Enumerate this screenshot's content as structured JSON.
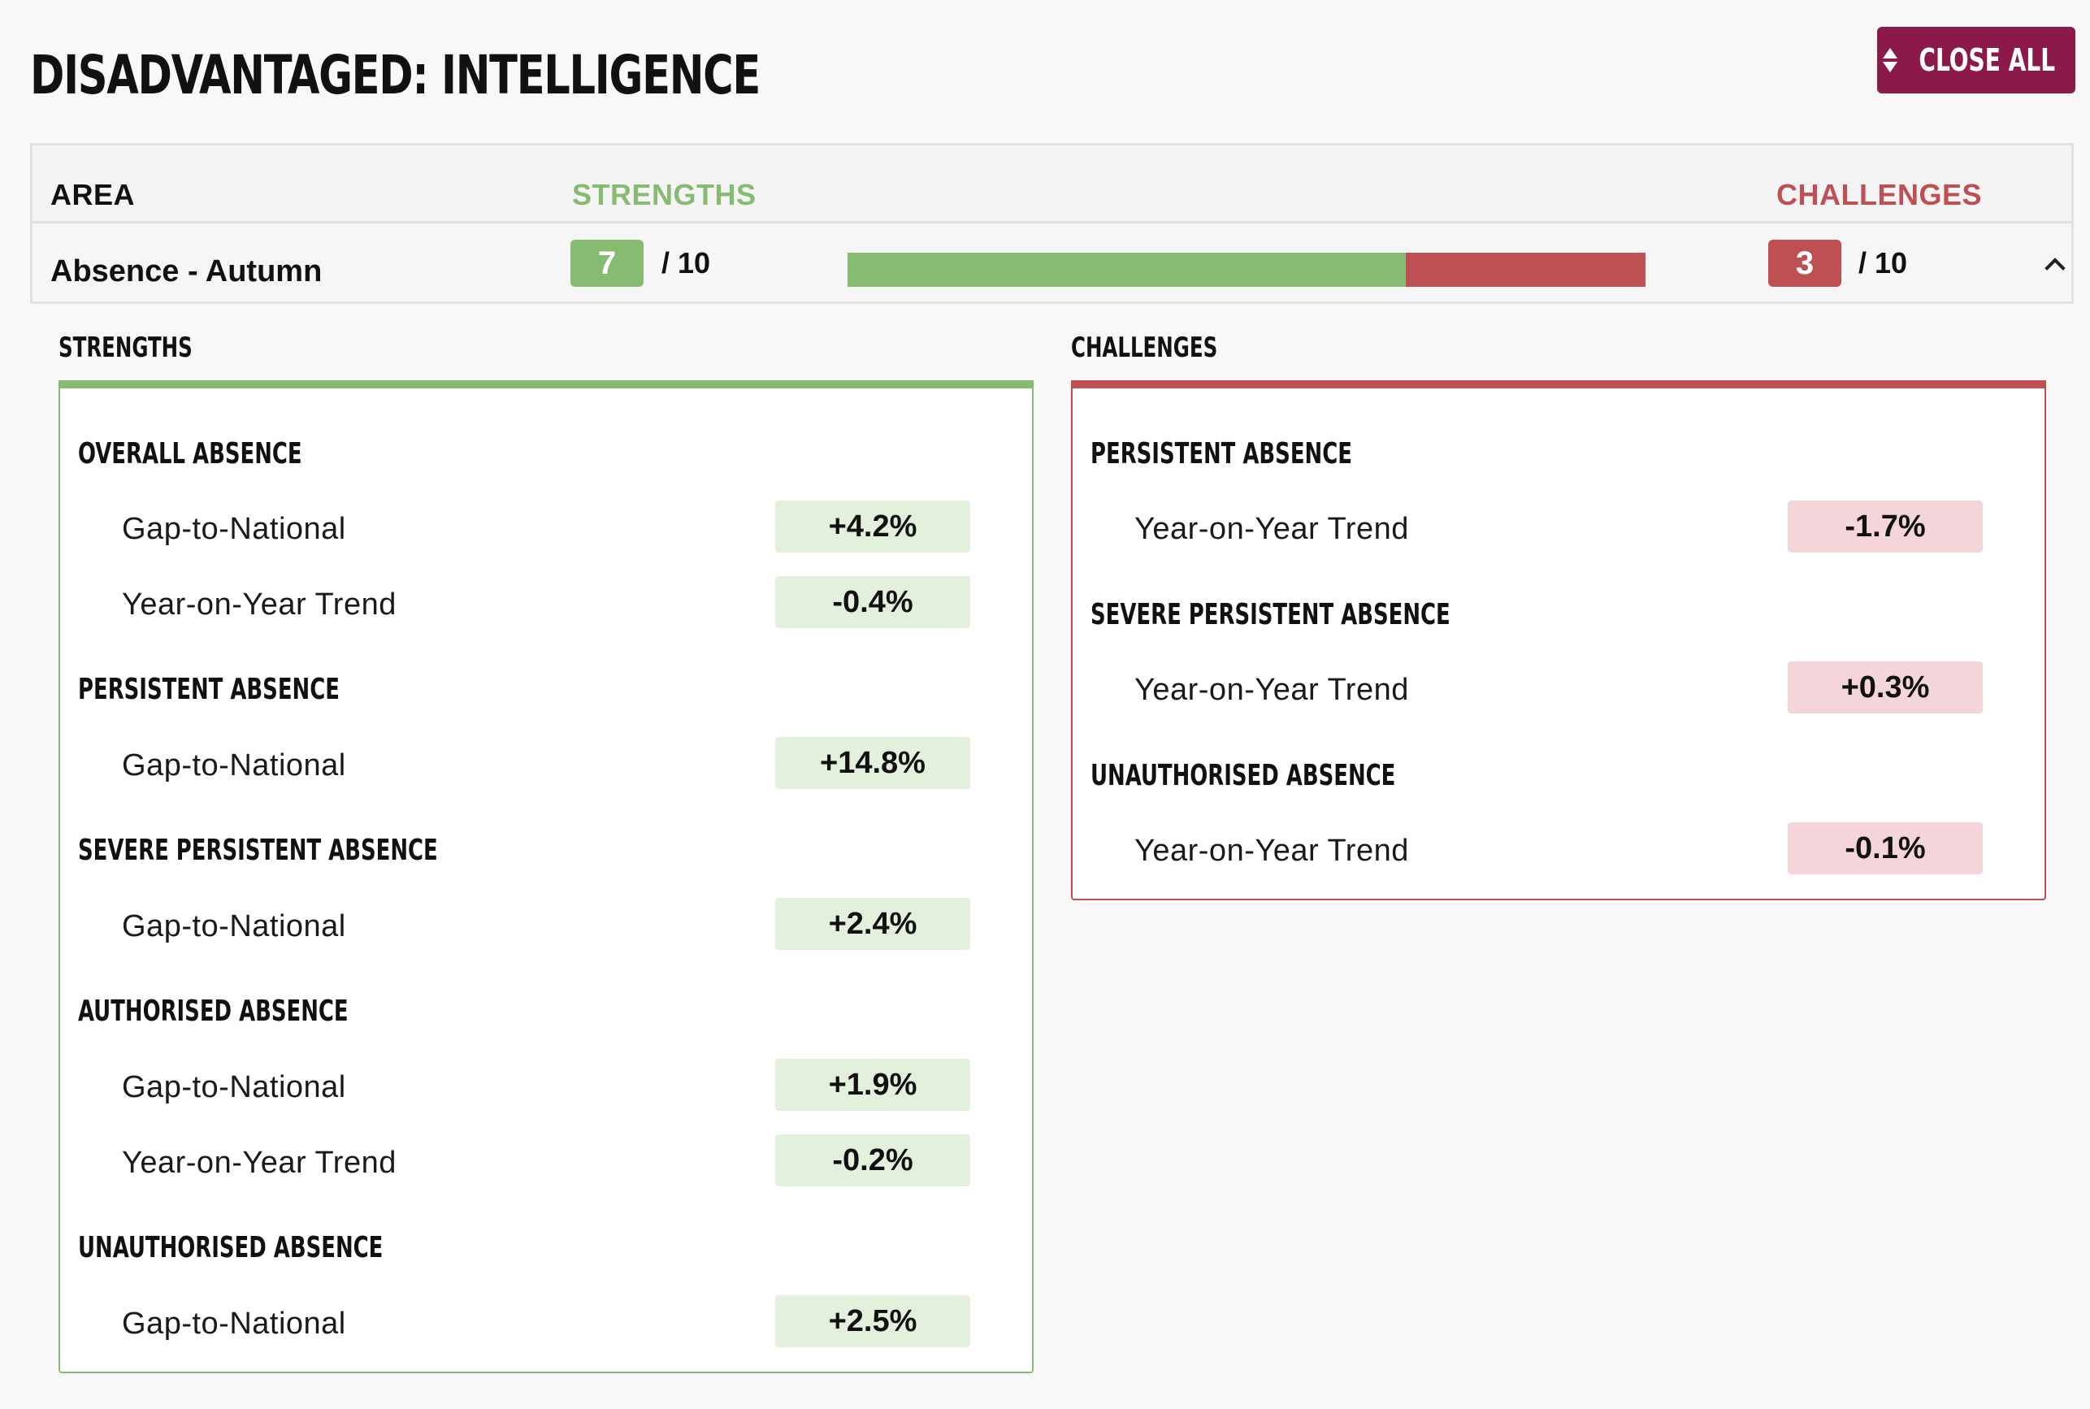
{
  "header": {
    "title": "DISADVANTAGED: INTELLIGENCE",
    "close_all_label": "CLOSE ALL",
    "close_all_icon": "sort-arrows-icon",
    "close_all_color": "#8b1a4b"
  },
  "table": {
    "col_area": "AREA",
    "col_strengths": "STRENGTHS",
    "col_challenges": "CHALLENGES",
    "row": {
      "label": "Absence - Autumn",
      "strengths_score": "7",
      "strengths_total": "/ 10",
      "challenges_score": "3",
      "challenges_total": "/ 10",
      "strength_fraction": 0.7,
      "expand_icon": "chevron-up-icon"
    }
  },
  "colors": {
    "strength": "#86bb72",
    "challenge": "#be4f52",
    "strength_value_bg": "#e3f0dc",
    "challenge_value_bg": "#f4d5d9"
  },
  "strengths_panel": {
    "title": "STRENGTHS",
    "groups": [
      {
        "title": "OVERALL ABSENCE",
        "metrics": [
          {
            "label": "Gap-to-National",
            "value": "+4.2%"
          },
          {
            "label": "Year-on-Year Trend",
            "value": "-0.4%"
          }
        ]
      },
      {
        "title": "PERSISTENT ABSENCE",
        "metrics": [
          {
            "label": "Gap-to-National",
            "value": "+14.8%"
          }
        ]
      },
      {
        "title": "SEVERE PERSISTENT ABSENCE",
        "metrics": [
          {
            "label": "Gap-to-National",
            "value": "+2.4%"
          }
        ]
      },
      {
        "title": "AUTHORISED ABSENCE",
        "metrics": [
          {
            "label": "Gap-to-National",
            "value": "+1.9%"
          },
          {
            "label": "Year-on-Year Trend",
            "value": "-0.2%"
          }
        ]
      },
      {
        "title": "UNAUTHORISED ABSENCE",
        "metrics": [
          {
            "label": "Gap-to-National",
            "value": "+2.5%"
          }
        ]
      }
    ]
  },
  "challenges_panel": {
    "title": "CHALLENGES",
    "groups": [
      {
        "title": "PERSISTENT ABSENCE",
        "metrics": [
          {
            "label": "Year-on-Year Trend",
            "value": "-1.7%"
          }
        ]
      },
      {
        "title": "SEVERE PERSISTENT ABSENCE",
        "metrics": [
          {
            "label": "Year-on-Year Trend",
            "value": "+0.3%"
          }
        ]
      },
      {
        "title": "UNAUTHORISED ABSENCE",
        "metrics": [
          {
            "label": "Year-on-Year Trend",
            "value": "-0.1%"
          }
        ]
      }
    ]
  }
}
